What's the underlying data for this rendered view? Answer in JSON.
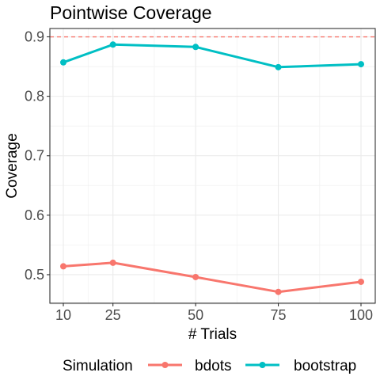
{
  "chart_data": {
    "type": "line",
    "title": "Pointwise Coverage",
    "xlabel": "# Trials",
    "ylabel": "Coverage",
    "x": [
      10,
      25,
      50,
      75,
      100
    ],
    "x_ticks": [
      "10",
      "25",
      "50",
      "75",
      "100"
    ],
    "y_ticks": [
      "0.5",
      "0.6",
      "0.7",
      "0.8",
      "0.9"
    ],
    "xlim": [
      10,
      100
    ],
    "ylim": [
      0.452,
      0.914
    ],
    "reference_line": {
      "y": 0.9,
      "color": "#F8766D",
      "style": "dashed"
    },
    "grid": true,
    "legend": {
      "title": "Simulation",
      "position": "bottom"
    },
    "series": [
      {
        "name": "bdots",
        "color": "#F8766D",
        "values": [
          0.514,
          0.52,
          0.496,
          0.471,
          0.488
        ]
      },
      {
        "name": "bootstrap",
        "color": "#00BFC4",
        "values": [
          0.857,
          0.887,
          0.883,
          0.849,
          0.854
        ]
      }
    ]
  }
}
